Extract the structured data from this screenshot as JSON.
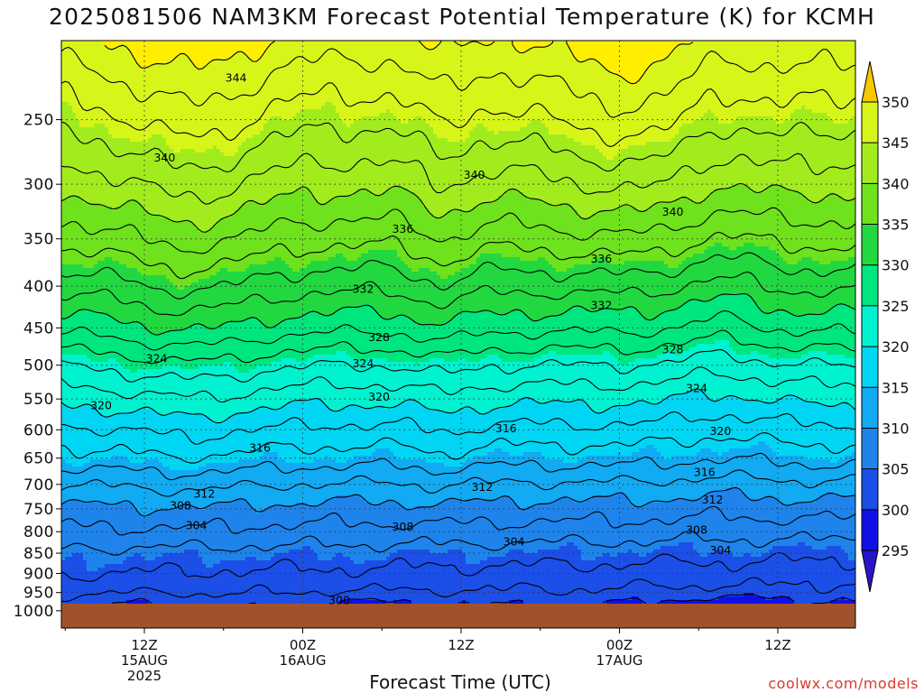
{
  "title": "2025081506 NAM3KM Forecast Potential Temperature (K) for KCMH",
  "xlabel": "Forecast Time (UTC)",
  "credit": "coolwx.com/models",
  "chart_data": {
    "type": "contour",
    "title": "2025081506 NAM3KM Forecast Potential Temperature (K) for KCMH",
    "xlabel": "Forecast Time (UTC)",
    "ylabel": "",
    "y_ticks": [
      250,
      300,
      350,
      400,
      450,
      500,
      550,
      600,
      650,
      700,
      750,
      800,
      850,
      900,
      950,
      1000
    ],
    "x_ticks": [
      {
        "lines": [
          "12Z",
          "15AUG",
          "2025"
        ]
      },
      {
        "lines": [
          "00Z",
          "16AUG"
        ]
      },
      {
        "lines": [
          "12Z"
        ]
      },
      {
        "lines": [
          "00Z",
          "17AUG"
        ]
      },
      {
        "lines": [
          "12Z"
        ]
      }
    ],
    "colorbar": {
      "labels": [
        295,
        300,
        305,
        310,
        315,
        320,
        325,
        330,
        335,
        340,
        345,
        350
      ],
      "bands": [
        {
          "min": 290,
          "max": 295,
          "color": "#1e14a8"
        },
        {
          "min": 295,
          "max": 300,
          "color": "#1010e6"
        },
        {
          "min": 300,
          "max": 305,
          "color": "#1c4fe8"
        },
        {
          "min": 305,
          "max": 310,
          "color": "#1e84ec"
        },
        {
          "min": 310,
          "max": 315,
          "color": "#12aaf2"
        },
        {
          "min": 315,
          "max": 320,
          "color": "#00d6f4"
        },
        {
          "min": 320,
          "max": 325,
          "color": "#00f2d0"
        },
        {
          "min": 325,
          "max": 330,
          "color": "#00e67e"
        },
        {
          "min": 330,
          "max": 335,
          "color": "#22d840"
        },
        {
          "min": 335,
          "max": 340,
          "color": "#6ee21c"
        },
        {
          "min": 340,
          "max": 345,
          "color": "#a2ec1e"
        },
        {
          "min": 345,
          "max": 350,
          "color": "#d8f51a"
        },
        {
          "min": 350,
          "max": 360,
          "color": "#ffee00"
        }
      ],
      "top_color": "#f5c800",
      "bottom_color": "#2a14c8"
    },
    "contour_labels": [
      {
        "value": "344",
        "t": 0.22,
        "p": 222
      },
      {
        "value": "340",
        "t": 0.13,
        "p": 278
      },
      {
        "value": "340",
        "t": 0.52,
        "p": 292
      },
      {
        "value": "340",
        "t": 0.77,
        "p": 324
      },
      {
        "value": "336",
        "t": 0.43,
        "p": 340
      },
      {
        "value": "336",
        "t": 0.68,
        "p": 370
      },
      {
        "value": "332",
        "t": 0.38,
        "p": 403
      },
      {
        "value": "332",
        "t": 0.68,
        "p": 422
      },
      {
        "value": "328",
        "t": 0.4,
        "p": 462
      },
      {
        "value": "328",
        "t": 0.77,
        "p": 478
      },
      {
        "value": "324",
        "t": 0.12,
        "p": 490
      },
      {
        "value": "324",
        "t": 0.38,
        "p": 497
      },
      {
        "value": "324",
        "t": 0.8,
        "p": 533
      },
      {
        "value": "320",
        "t": 0.05,
        "p": 560
      },
      {
        "value": "320",
        "t": 0.4,
        "p": 546
      },
      {
        "value": "320",
        "t": 0.83,
        "p": 602
      },
      {
        "value": "316",
        "t": 0.25,
        "p": 631
      },
      {
        "value": "316",
        "t": 0.56,
        "p": 597
      },
      {
        "value": "316",
        "t": 0.81,
        "p": 676
      },
      {
        "value": "312",
        "t": 0.18,
        "p": 718
      },
      {
        "value": "312",
        "t": 0.53,
        "p": 705
      },
      {
        "value": "312",
        "t": 0.82,
        "p": 730
      },
      {
        "value": "308",
        "t": 0.15,
        "p": 743
      },
      {
        "value": "308",
        "t": 0.43,
        "p": 788
      },
      {
        "value": "308",
        "t": 0.8,
        "p": 795
      },
      {
        "value": "304",
        "t": 0.17,
        "p": 785
      },
      {
        "value": "304",
        "t": 0.57,
        "p": 822
      },
      {
        "value": "304",
        "t": 0.83,
        "p": 842
      },
      {
        "value": "300",
        "t": 0.35,
        "p": 970
      }
    ]
  }
}
